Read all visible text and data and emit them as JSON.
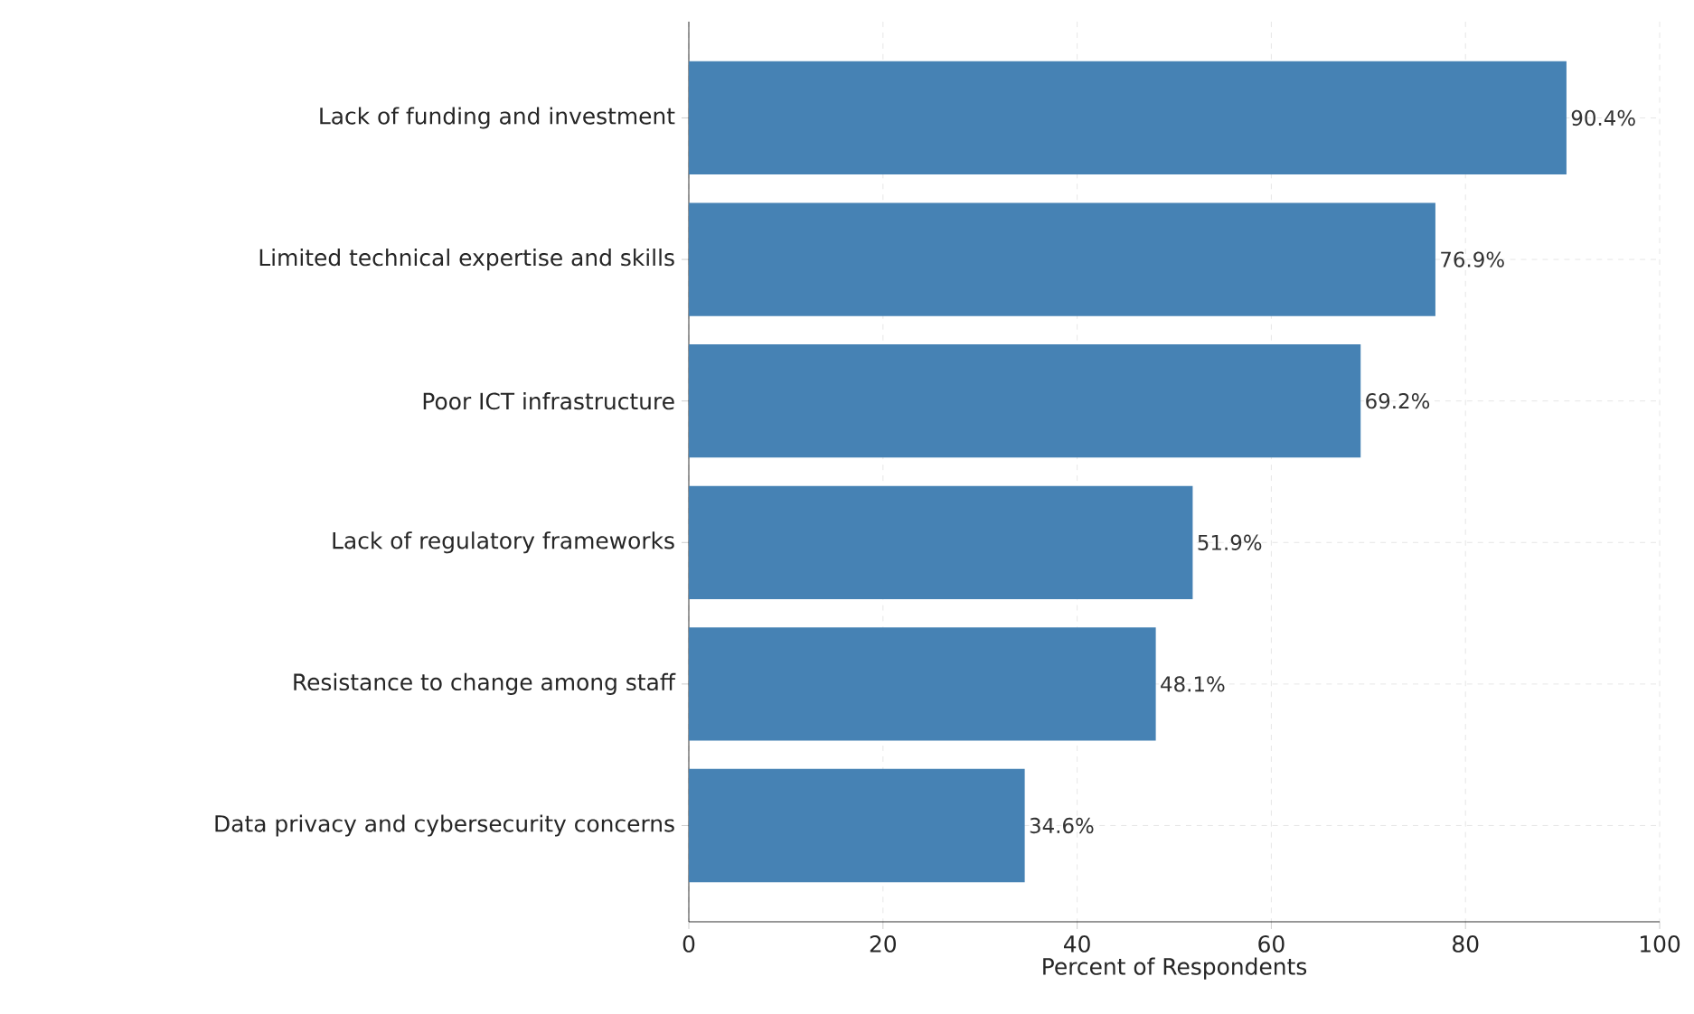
{
  "chart_data": {
    "type": "bar",
    "orientation": "horizontal",
    "categories": [
      "Lack of funding and investment",
      "Limited technical expertise and skills",
      "Poor ICT infrastructure",
      "Lack of regulatory frameworks",
      "Resistance to change among staff",
      "Data privacy and cybersecurity concerns"
    ],
    "values": [
      90.4,
      76.9,
      69.2,
      51.9,
      48.1,
      34.6
    ],
    "value_labels": [
      "90.4%",
      "76.9%",
      "69.2%",
      "51.9%",
      "48.1%",
      "34.6%"
    ],
    "color": "#4682b4",
    "xlabel": "Percent of Respondents",
    "xlim": [
      0,
      100
    ],
    "xticks": [
      0,
      20,
      40,
      60,
      80,
      100
    ],
    "grid": true
  }
}
